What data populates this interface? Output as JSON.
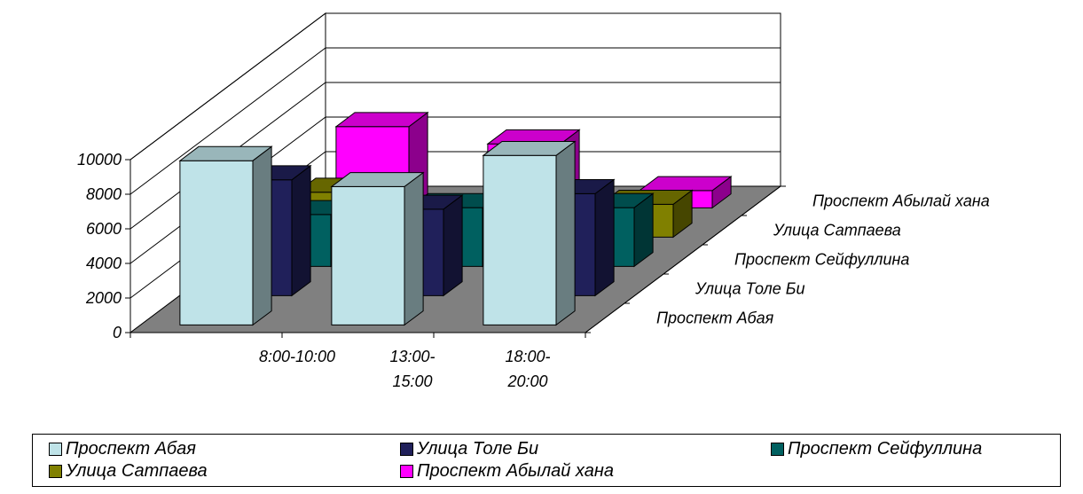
{
  "chart_data": {
    "type": "bar",
    "categories": [
      "8:00-10:00",
      "13:00-15:00",
      "18:00-20:00"
    ],
    "category_lines": [
      [
        "8:00-10:00"
      ],
      [
        "13:00-",
        "15:00"
      ],
      [
        "18:00-",
        "20:00"
      ]
    ],
    "series": [
      {
        "name": "Проспект Абая",
        "color": "#bfe3e8",
        "values": [
          9500,
          8000,
          9800
        ]
      },
      {
        "name": "Улица Толе Би",
        "color": "#20205a",
        "values": [
          6700,
          5000,
          5900
        ]
      },
      {
        "name": "Проспект Сейфуллина",
        "color": "#006060",
        "values": [
          3000,
          3400,
          3400
        ]
      },
      {
        "name": "Улица Сатпаева",
        "color": "#808000",
        "values": [
          2600,
          0,
          1900
        ]
      },
      {
        "name": "Проспект Абылай хана",
        "color": "#ff00ff",
        "values": [
          4700,
          3700,
          1000
        ]
      }
    ],
    "yticks": [
      0,
      2000,
      4000,
      6000,
      8000,
      10000
    ],
    "ylim": [
      0,
      10000
    ],
    "grid": true,
    "legend": "bottom",
    "title": "",
    "xlabel": "",
    "ylabel": ""
  }
}
